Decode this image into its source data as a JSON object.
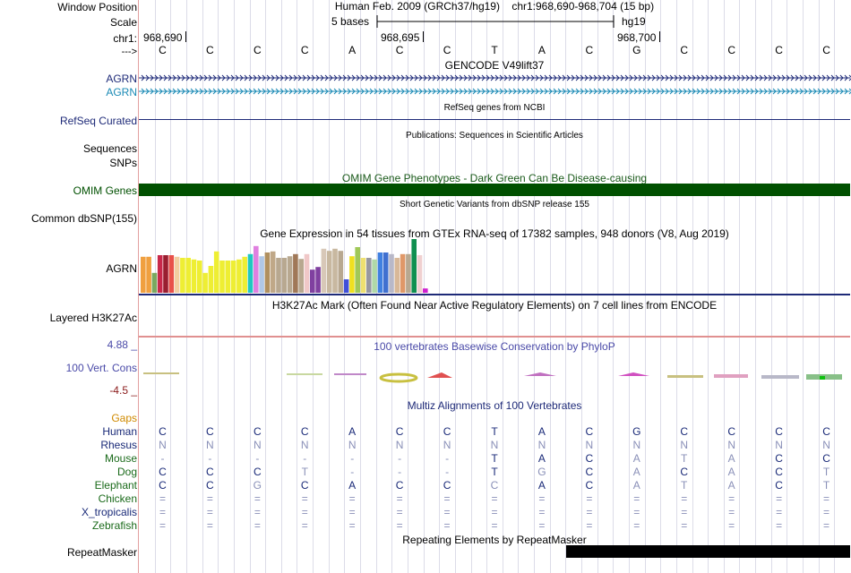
{
  "header": {
    "window_position_label": "Window Position",
    "scale_label": "Scale",
    "chrom_label": "chr1:",
    "arrow_label": "--->",
    "position_text": "Human Feb. 2009 (GRCh37/hg19)    chr1:968,690-968,704 (15 bp)",
    "scale_text": "5 bases",
    "assembly_text": "hg19",
    "coord_1": "968,690",
    "coord_2": "968,695",
    "coord_3": "968,700"
  },
  "sequence": [
    "C",
    "C",
    "C",
    "C",
    "A",
    "C",
    "C",
    "T",
    "A",
    "C",
    "G",
    "C",
    "C",
    "C",
    "C"
  ],
  "tracks": {
    "gencode_title": "GENCODE V49lift37",
    "gencode_genes": [
      "AGRN",
      "AGRN"
    ],
    "refseq_title": "RefSeq genes from NCBI",
    "refseq_label": "RefSeq Curated",
    "publications_title": "Publications: Sequences in Scientific Articles",
    "sequences_label": "Sequences",
    "snps_label": "SNPs",
    "omim_title": "OMIM Gene Phenotypes - Dark Green Can Be Disease-causing",
    "omim_label": "OMIM Genes",
    "dbsnp_title": "Short Genetic Variants from dbSNP release 155",
    "dbsnp_label": "Common dbSNP(155)",
    "gtex_title": "Gene Expression in 54 tissues from GTEx RNA-seq of 17382 samples, 948 donors (V8, Aug 2019)",
    "gtex_label": "AGRN",
    "h3k27_title": "H3K27Ac Mark (Often Found Near Active Regulatory Elements) on 7 cell lines from ENCODE",
    "h3k27_label": "Layered H3K27Ac",
    "cons_title": "100 vertebrates Basewise Conservation by PhyloP",
    "cons_label": "100 Vert. Cons",
    "cons_max": "4.88 _",
    "cons_min": "-4.5 _",
    "multiz_title": "Multiz Alignments of 100 Vertebrates",
    "gaps_label": "Gaps",
    "repeat_title": "Repeating Elements by RepeatMasker",
    "repeat_label": "RepeatMasker"
  },
  "colors": {
    "label_blue": "#1e2a78",
    "label_lightblue": "#1a8ab5",
    "omim_green": "#005000",
    "cons_blue": "#4a4aa8",
    "cons_red": "#8a1a1a",
    "gaps_orange": "#d08a00"
  },
  "gtex_bars": [
    {
      "v": 0.67,
      "c": "#f0a040"
    },
    {
      "v": 0.67,
      "c": "#f0a040"
    },
    {
      "v": 0.37,
      "c": "#7aa860"
    },
    {
      "v": 0.7,
      "c": "#c8284a"
    },
    {
      "v": 0.7,
      "c": "#9a1e30"
    },
    {
      "v": 0.7,
      "c": "#e8504a"
    },
    {
      "v": 0.67,
      "c": "#f2cda0"
    },
    {
      "v": 0.65,
      "c": "#eeee33"
    },
    {
      "v": 0.65,
      "c": "#eeee33"
    },
    {
      "v": 0.62,
      "c": "#eeee33"
    },
    {
      "v": 0.6,
      "c": "#eeee33"
    },
    {
      "v": 0.37,
      "c": "#eeee33"
    },
    {
      "v": 0.5,
      "c": "#eeee33"
    },
    {
      "v": 0.77,
      "c": "#eeee33"
    },
    {
      "v": 0.6,
      "c": "#eeee33"
    },
    {
      "v": 0.6,
      "c": "#eeee33"
    },
    {
      "v": 0.6,
      "c": "#eeee33"
    },
    {
      "v": 0.62,
      "c": "#eeee33"
    },
    {
      "v": 0.67,
      "c": "#eeee33"
    },
    {
      "v": 0.72,
      "c": "#22c8c0"
    },
    {
      "v": 0.87,
      "c": "#e080e0"
    },
    {
      "v": 0.68,
      "c": "#b0c8e8"
    },
    {
      "v": 0.75,
      "c": "#b09060"
    },
    {
      "v": 0.77,
      "c": "#c0a888"
    },
    {
      "v": 0.65,
      "c": "#b8a890"
    },
    {
      "v": 0.65,
      "c": "#b8a890"
    },
    {
      "v": 0.68,
      "c": "#b8a890"
    },
    {
      "v": 0.72,
      "c": "#a07858"
    },
    {
      "v": 0.63,
      "c": "#b8a890"
    },
    {
      "v": 0.72,
      "c": "#f0c8c8"
    },
    {
      "v": 0.43,
      "c": "#8040a0"
    },
    {
      "v": 0.48,
      "c": "#8040a0"
    },
    {
      "v": 0.82,
      "c": "#d8c8b8"
    },
    {
      "v": 0.78,
      "c": "#c8b8a0"
    },
    {
      "v": 0.82,
      "c": "#c8b8a0"
    },
    {
      "v": 0.78,
      "c": "#b8a890"
    },
    {
      "v": 0.25,
      "c": "#4050d8"
    },
    {
      "v": 0.68,
      "c": "#eee020"
    },
    {
      "v": 0.85,
      "c": "#a0c858"
    },
    {
      "v": 0.65,
      "c": "#eee070"
    },
    {
      "v": 0.65,
      "c": "#9898a0"
    },
    {
      "v": 0.62,
      "c": "#b0d8a8"
    },
    {
      "v": 0.75,
      "c": "#4080e0"
    },
    {
      "v": 0.75,
      "c": "#4070d0"
    },
    {
      "v": 0.72,
      "c": "#b8b8c8"
    },
    {
      "v": 0.65,
      "c": "#d8b898"
    },
    {
      "v": 0.72,
      "c": "#e09868"
    },
    {
      "v": 0.72,
      "c": "#b8a890"
    },
    {
      "v": 1.0,
      "c": "#109050"
    },
    {
      "v": 0.7,
      "c": "#f0d0d0"
    },
    {
      "v": 0.08,
      "c": "#d020d0"
    }
  ],
  "multiz": [
    {
      "species": "Human",
      "color": "#1a2a78",
      "bases": [
        "C",
        "C",
        "C",
        "C",
        "A",
        "C",
        "C",
        "T",
        "A",
        "C",
        "G",
        "C",
        "C",
        "C",
        "C"
      ],
      "base_color": "#1a2a78"
    },
    {
      "species": "Rhesus",
      "color": "#1a2a78",
      "bases": [
        "N",
        "N",
        "N",
        "N",
        "N",
        "N",
        "N",
        "N",
        "N",
        "N",
        "N",
        "N",
        "N",
        "N",
        "N"
      ],
      "base_color": "#8a90b8"
    },
    {
      "species": "Mouse",
      "color": "#1a6a1a",
      "bases": [
        "-",
        "-",
        "-",
        "-",
        "-",
        "-",
        "-",
        "T",
        "A",
        "C",
        "A",
        "T",
        "A",
        "C",
        "C"
      ],
      "base_color": "mix"
    },
    {
      "species": "Dog",
      "color": "#1a6a1a",
      "bases": [
        "C",
        "C",
        "C",
        "T",
        "-",
        "-",
        "-",
        "T",
        "G",
        "C",
        "A",
        "C",
        "A",
        "C",
        "T"
      ],
      "base_color": "mix"
    },
    {
      "species": "Elephant",
      "color": "#1a6a1a",
      "bases": [
        "C",
        "C",
        "G",
        "C",
        "A",
        "C",
        "C",
        "C",
        "A",
        "C",
        "A",
        "T",
        "A",
        "C",
        "T"
      ],
      "base_color": "mix"
    },
    {
      "species": "Chicken",
      "color": "#1a6a1a",
      "bases": [
        "=",
        "=",
        "=",
        "=",
        "=",
        "=",
        "=",
        "=",
        "=",
        "=",
        "=",
        "=",
        "=",
        "=",
        "="
      ],
      "base_color": "#8a90b8"
    },
    {
      "species": "X_tropicalis",
      "color": "#1a2a78",
      "bases": [
        "=",
        "=",
        "=",
        "=",
        "=",
        "=",
        "=",
        "=",
        "=",
        "=",
        "=",
        "=",
        "=",
        "=",
        "="
      ],
      "base_color": "#8a90b8"
    },
    {
      "species": "Zebrafish",
      "color": "#1a6a1a",
      "bases": [
        "=",
        "=",
        "=",
        "=",
        "=",
        "=",
        "=",
        "=",
        "=",
        "=",
        "=",
        "=",
        "=",
        "=",
        "="
      ],
      "base_color": "#8a90b8"
    }
  ]
}
